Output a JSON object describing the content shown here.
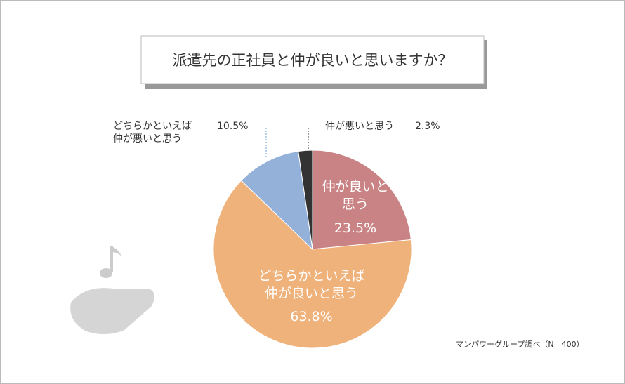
{
  "chart_data": {
    "type": "pie",
    "title": "派遣先の正社員と仲が良いと思いますか？",
    "categories": [
      "仲が良いと思う",
      "どちらかといえば仲が良いと思う",
      "どちらかといえば仲が悪いと思う",
      "仲が悪いと思う"
    ],
    "values": [
      23.5,
      63.8,
      10.5,
      2.3
    ],
    "value_labels": [
      "23.5%",
      "63.8%",
      "10.5%",
      "2.3%"
    ],
    "colors": [
      "#c98384",
      "#f0b27b",
      "#94b1d9",
      "#333333"
    ],
    "source": "マンパワーグループ調べ（N＝400）"
  }
}
